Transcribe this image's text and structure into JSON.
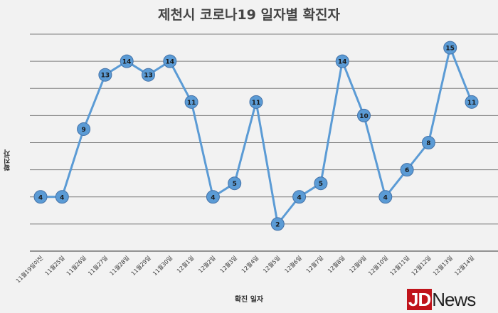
{
  "chart_data": {
    "type": "line",
    "title": "제천시 코로나19 일자별 확진자",
    "xlabel": "확진 일자",
    "ylabel": "확진자",
    "categories": [
      "11월19일이전",
      "11월25일",
      "11월26일",
      "11월27일",
      "11월28일",
      "11월29일",
      "11월30일",
      "12월1일",
      "12월2일",
      "12월3일",
      "12월4일",
      "12월5일",
      "12월6일",
      "12월7일",
      "12월8일",
      "12월9일",
      "12월10일",
      "12월11일",
      "12월12일",
      "12월13일",
      "12월14일"
    ],
    "series": [
      {
        "values": [
          4,
          4,
          9,
          13,
          14,
          13,
          14,
          11,
          4,
          5,
          11,
          2,
          4,
          5,
          14,
          10,
          4,
          6,
          8,
          15,
          11
        ]
      }
    ],
    "ylim": [
      0,
      16
    ],
    "ytick_step": 2,
    "grid": true,
    "data_labels": true,
    "colors": {
      "line": "#5b9bd5",
      "marker": "#5b9bd5",
      "marker_edge": "#4472a8",
      "grid": "#7f7f7f",
      "axis": "#333333"
    }
  },
  "logo": {
    "jd": "JD",
    "news": "News"
  }
}
